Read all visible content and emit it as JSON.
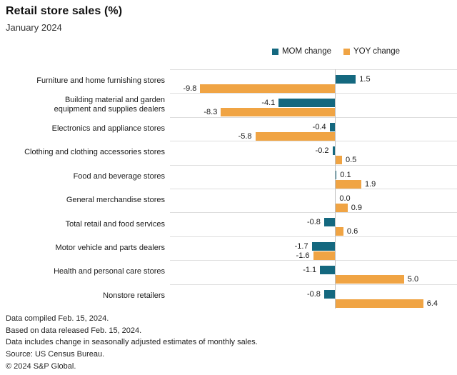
{
  "header": {
    "title": "Retail store sales (%)",
    "subtitle": "January 2024"
  },
  "legend": {
    "items": [
      {
        "label": "MOM change",
        "color": "#14687f"
      },
      {
        "label": "YOY change",
        "color": "#f0a444"
      }
    ]
  },
  "chart_data": {
    "type": "bar",
    "orientation": "horizontal",
    "title": "Retail store sales (%)",
    "subtitle": "January 2024",
    "categories": [
      "Furniture and home furnishing stores",
      "Building material and garden\nequipment and supplies dealers",
      "Electronics and appliance stores",
      "Clothing and clothing accessories stores",
      "Food and beverage stores",
      "General merchandise stores",
      "Total retail and food services",
      "Motor vehicle and parts dealers",
      "Health and personal care stores",
      "Nonstore retailers"
    ],
    "series": [
      {
        "name": "MOM change",
        "color": "#14687f",
        "values": [
          1.5,
          -4.1,
          -0.4,
          -0.2,
          0.1,
          0.0,
          -0.8,
          -1.7,
          -1.1,
          -0.8
        ]
      },
      {
        "name": "YOY change",
        "color": "#f0a444",
        "values": [
          -9.8,
          -8.3,
          -5.8,
          0.5,
          1.9,
          0.9,
          0.6,
          -1.6,
          5.0,
          6.4
        ]
      }
    ],
    "xlim": [
      -12,
      8.85
    ],
    "value_labels": true,
    "grid": "row-separators",
    "legend_position": "top-right",
    "gridline_color": "#dedede",
    "zero_line_color": "#bfbfbf"
  },
  "footer": {
    "lines": [
      "Data compiled Feb. 15, 2024.",
      "Based on data released Feb. 15, 2024.",
      "Data includes change in seasonally adjusted estimates of monthly sales.",
      "Source: US Census Bureau.",
      "© 2024 S&P Global."
    ]
  }
}
